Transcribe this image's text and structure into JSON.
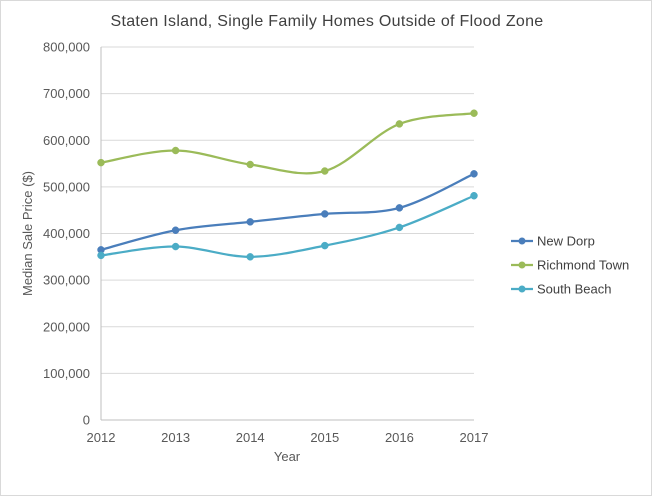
{
  "chart_data": {
    "type": "line",
    "title": "Staten Island, Single Family Homes Outside of Flood Zone",
    "xlabel": "Year",
    "ylabel": "Median Sale Price ($)",
    "x": [
      2012,
      2013,
      2014,
      2015,
      2016,
      2017
    ],
    "x_tick_labels": [
      "2012",
      "2013",
      "2014",
      "2015",
      "2016",
      "2017"
    ],
    "ylim": [
      0,
      800000
    ],
    "y_ticks": [
      0,
      100000,
      200000,
      300000,
      400000,
      500000,
      600000,
      700000,
      800000
    ],
    "y_tick_labels": [
      "0",
      "100,000",
      "200,000",
      "300,000",
      "400,000",
      "500,000",
      "600,000",
      "700,000",
      "800,000"
    ],
    "grid": "horizontal",
    "legend_position": "right",
    "smoothed": true,
    "series": [
      {
        "name": "New Dorp",
        "color": "#4a7ebb",
        "values": [
          365000,
          407000,
          425000,
          442000,
          455000,
          528000
        ]
      },
      {
        "name": "Richmond Town",
        "color": "#9bbb59",
        "values": [
          552000,
          578000,
          548000,
          534000,
          635000,
          658000
        ]
      },
      {
        "name": "South Beach",
        "color": "#4bacc6",
        "values": [
          353000,
          372000,
          350000,
          374000,
          413000,
          481000
        ]
      }
    ]
  }
}
